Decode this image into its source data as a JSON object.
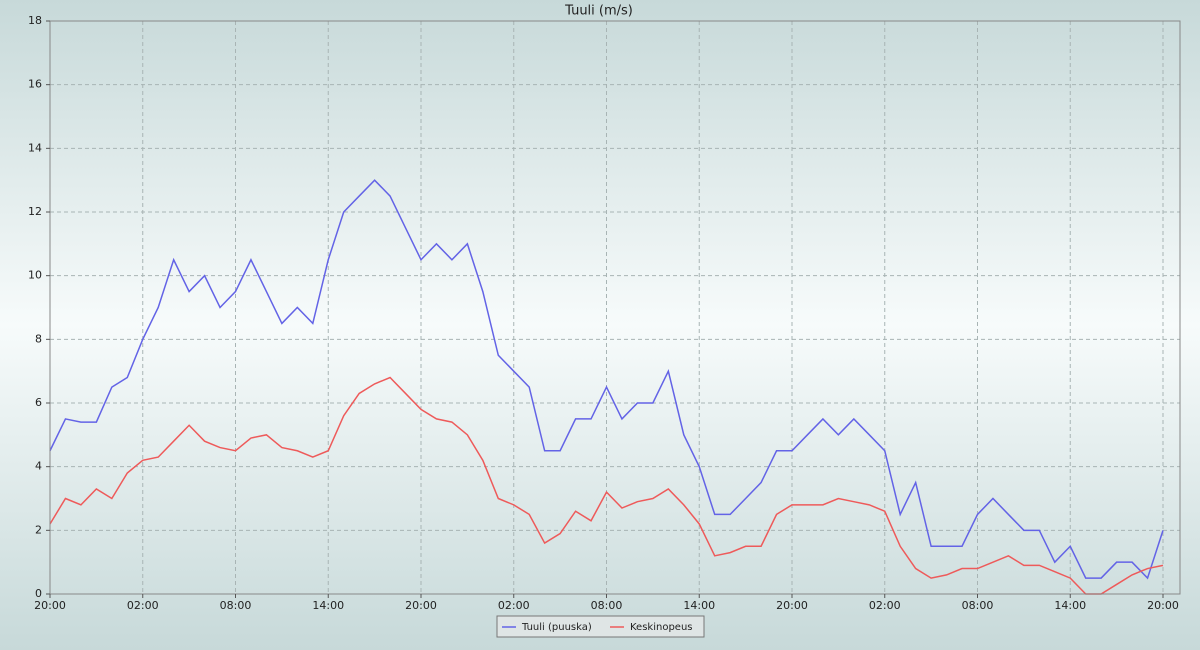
{
  "chart_data": {
    "type": "line",
    "title": "Tuuli (m/s)",
    "x": [
      0,
      1,
      2,
      3,
      4,
      5,
      6,
      7,
      8,
      9,
      10,
      11,
      12,
      13,
      14,
      15,
      16,
      17,
      18,
      19,
      20,
      21,
      22,
      23,
      24,
      25,
      26,
      27,
      28,
      29,
      30,
      31,
      32,
      33,
      34,
      35,
      36,
      37,
      38,
      39,
      40,
      41,
      42,
      43,
      44,
      45,
      46,
      47,
      48,
      49,
      50,
      51,
      52,
      53,
      54,
      55,
      56,
      57,
      58,
      59,
      60,
      61,
      62,
      63,
      64,
      65,
      66,
      67,
      68,
      69,
      70,
      71,
      72
    ],
    "series": [
      {
        "name": "Tuuli (puuska)",
        "color": "#6363e6",
        "values": [
          4.5,
          5.5,
          5.4,
          5.4,
          6.5,
          6.8,
          8.0,
          9.0,
          10.5,
          9.5,
          10.0,
          9.0,
          9.5,
          10.5,
          9.5,
          8.5,
          9.0,
          8.5,
          10.5,
          12.0,
          12.5,
          13.0,
          12.5,
          11.5,
          10.5,
          11.0,
          10.5,
          11.0,
          9.5,
          7.5,
          7.0,
          6.5,
          4.5,
          4.5,
          5.5,
          5.5,
          6.5,
          5.5,
          6.0,
          6.0,
          7.0,
          5.0,
          4.0,
          2.5,
          2.5,
          3.0,
          3.5,
          4.5,
          4.5,
          5.0,
          5.5,
          5.0,
          5.5,
          5.0,
          4.5,
          2.5,
          3.5,
          1.5,
          1.5,
          1.5,
          2.5,
          3.0,
          2.5,
          2.0,
          2.0,
          1.0,
          1.5,
          0.5,
          0.5,
          1.0,
          1.0,
          0.5,
          2.0
        ]
      },
      {
        "name": "Keskinopeus",
        "color": "#ee5a5a",
        "values": [
          2.2,
          3.0,
          2.8,
          3.3,
          3.0,
          3.8,
          4.2,
          4.3,
          4.8,
          5.3,
          4.8,
          4.6,
          4.5,
          4.9,
          5.0,
          4.6,
          4.5,
          4.3,
          4.5,
          5.6,
          6.3,
          6.6,
          6.8,
          6.3,
          5.8,
          5.5,
          5.4,
          5.0,
          4.2,
          3.0,
          2.8,
          2.5,
          1.6,
          1.9,
          2.6,
          2.3,
          3.2,
          2.7,
          2.9,
          3.0,
          3.3,
          2.8,
          2.2,
          1.2,
          1.3,
          1.5,
          1.5,
          2.5,
          2.8,
          2.8,
          2.8,
          3.0,
          2.9,
          2.8,
          2.6,
          1.5,
          0.8,
          0.5,
          0.6,
          0.8,
          0.8,
          1.0,
          1.2,
          0.9,
          0.9,
          0.7,
          0.5,
          0.0,
          0.0,
          0.3,
          0.6,
          0.8,
          0.9
        ]
      }
    ],
    "xlim": [
      0,
      73.1
    ],
    "xticks": [
      {
        "value": 0,
        "label": "20:00"
      },
      {
        "value": 6,
        "label": "02:00"
      },
      {
        "value": 12,
        "label": "08:00"
      },
      {
        "value": 18,
        "label": "14:00"
      },
      {
        "value": 24,
        "label": "20:00"
      },
      {
        "value": 30,
        "label": "02:00"
      },
      {
        "value": 36,
        "label": "08:00"
      },
      {
        "value": 42,
        "label": "14:00"
      },
      {
        "value": 48,
        "label": "20:00"
      },
      {
        "value": 54,
        "label": "02:00"
      },
      {
        "value": 60,
        "label": "08:00"
      },
      {
        "value": 66,
        "label": "14:00"
      },
      {
        "value": 72,
        "label": "20:00"
      }
    ],
    "ylim": [
      0,
      18
    ],
    "yticks": [
      0,
      2,
      4,
      6,
      8,
      10,
      12,
      14,
      16,
      18
    ],
    "grid": true,
    "legend": "bottom"
  }
}
